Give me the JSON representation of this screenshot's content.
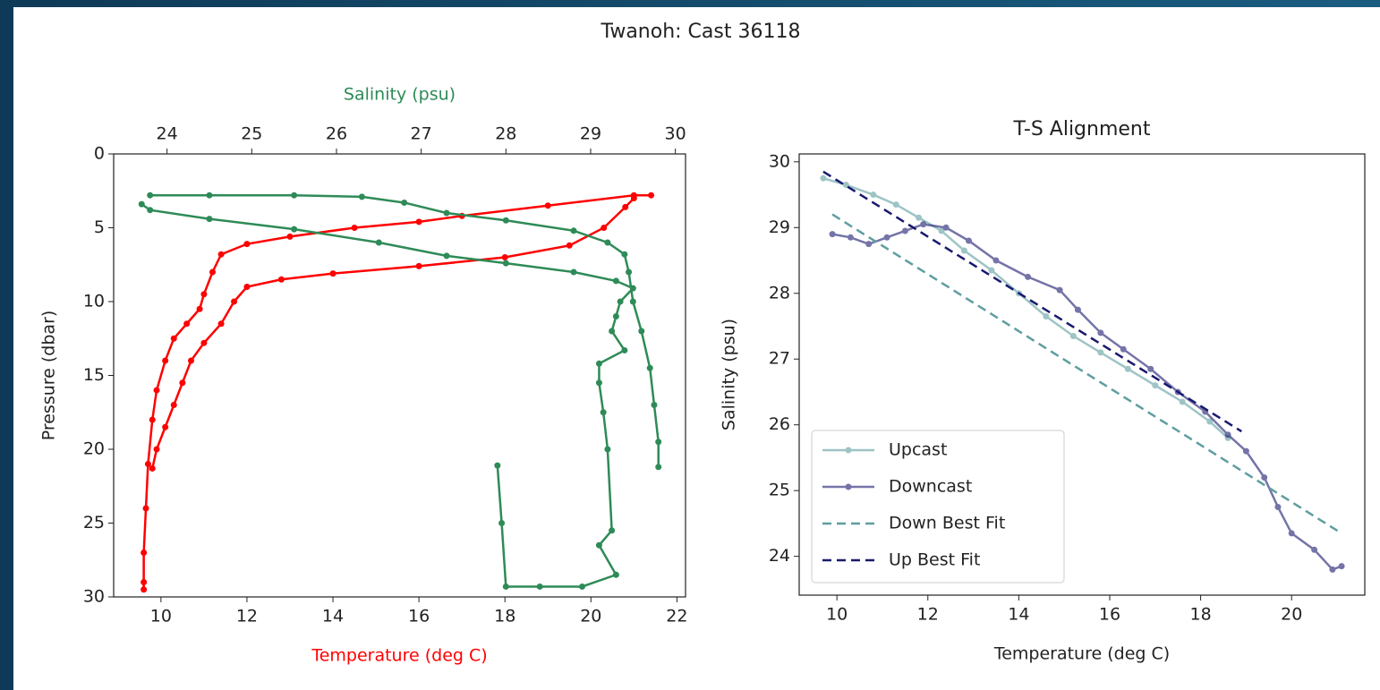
{
  "figure_title": "Twanoh: Cast 36118",
  "chart_data": [
    {
      "type": "line",
      "xlabel": "Temperature (deg C)",
      "xlabel_color": "red",
      "x2label": "Salinity (psu)",
      "x2label_color": "#2e8b57",
      "ylabel": "Pressure (dbar)",
      "xlim": [
        8.9,
        22.2
      ],
      "xticks": [
        10,
        12,
        14,
        16,
        18,
        20,
        22
      ],
      "x2lim": [
        23.37,
        30.12
      ],
      "x2ticks": [
        24,
        25,
        26,
        27,
        28,
        29,
        30
      ],
      "ylim": [
        30,
        0
      ],
      "yticks": [
        0,
        5,
        10,
        15,
        20,
        25,
        30
      ],
      "series": [
        {
          "color": "red",
          "axis": "x",
          "marker": true,
          "x": [
            21.4,
            21.0,
            19.0,
            17.0,
            16.0,
            14.5,
            13.0,
            12.0,
            11.4,
            11.2,
            11.0,
            10.9,
            10.6,
            10.3,
            10.1,
            9.9,
            9.8,
            9.7,
            9.65,
            9.6,
            9.6,
            9.6
          ],
          "values": [
            2.8,
            2.8,
            3.5,
            4.2,
            4.6,
            5.0,
            5.6,
            6.1,
            6.8,
            8.0,
            9.5,
            10.5,
            11.5,
            12.5,
            14.0,
            16.0,
            18.0,
            21.0,
            24.0,
            27.0,
            29.0,
            29.5
          ]
        },
        {
          "color": "red",
          "axis": "x",
          "marker": true,
          "x": [
            21.0,
            20.8,
            20.3,
            19.5,
            18.0,
            16.0,
            14.0,
            12.8,
            12.0,
            11.7,
            11.4,
            11.0,
            10.7,
            10.5,
            10.3,
            10.1,
            9.9,
            9.8
          ],
          "values": [
            3.0,
            3.6,
            5.0,
            6.2,
            7.0,
            7.6,
            8.1,
            8.5,
            9.0,
            10.0,
            11.5,
            12.8,
            14.0,
            15.5,
            17.0,
            18.5,
            20.0,
            21.3
          ]
        },
        {
          "color": "#2e8b57",
          "axis": "x2",
          "marker": true,
          "x": [
            23.8,
            24.5,
            25.5,
            26.3,
            26.8,
            27.3,
            28.0,
            28.8,
            29.2,
            29.4,
            29.45,
            29.5,
            29.6,
            29.7,
            29.75,
            29.8,
            29.8
          ],
          "values": [
            2.8,
            2.8,
            2.8,
            2.9,
            3.3,
            4.0,
            4.5,
            5.2,
            6.0,
            6.8,
            8.0,
            10.0,
            12.0,
            14.5,
            17.0,
            19.5,
            21.2
          ]
        },
        {
          "color": "#2e8b57",
          "axis": "x2",
          "marker": true,
          "x": [
            23.7,
            23.8,
            24.5,
            25.5,
            26.5,
            27.3,
            28.0,
            28.8,
            29.3,
            29.5,
            29.35,
            29.3,
            29.25,
            29.4,
            29.1,
            29.1,
            29.15,
            29.2,
            29.25,
            29.1,
            29.3,
            28.9,
            28.4,
            28.0,
            27.95,
            27.9
          ],
          "values": [
            3.4,
            3.8,
            4.4,
            5.1,
            6.0,
            6.9,
            7.4,
            8.0,
            8.6,
            9.1,
            10.0,
            11.0,
            12.0,
            13.3,
            14.2,
            15.5,
            17.5,
            20.0,
            25.5,
            26.5,
            28.5,
            29.3,
            29.3,
            29.3,
            25.0,
            21.1
          ]
        }
      ]
    },
    {
      "type": "line",
      "title": "T-S Alignment",
      "xlabel": "Temperature (deg C)",
      "ylabel": "Salinity (psu)",
      "xlim": [
        9.17,
        21.61
      ],
      "xticks": [
        10,
        12,
        14,
        16,
        18,
        20
      ],
      "ylim": [
        23.41,
        30.12
      ],
      "yticks": [
        24,
        25,
        26,
        27,
        28,
        29,
        30
      ],
      "legend": "lower left",
      "series": [
        {
          "name": "Upcast",
          "color": "#5f9ea0",
          "alpha": 0.6,
          "marker": true,
          "x": [
            9.7,
            10.2,
            10.8,
            11.3,
            11.8,
            12.3,
            12.8,
            13.4,
            14.0,
            14.6,
            15.2,
            15.8,
            16.4,
            17.0,
            17.6,
            18.2,
            18.6
          ],
          "values": [
            29.75,
            29.65,
            29.5,
            29.35,
            29.15,
            28.95,
            28.65,
            28.35,
            28.0,
            27.65,
            27.35,
            27.1,
            26.85,
            26.6,
            26.35,
            26.05,
            25.8
          ]
        },
        {
          "name": "Downcast",
          "color": "#191970",
          "alpha": 0.6,
          "marker": true,
          "x": [
            9.9,
            10.3,
            10.7,
            11.1,
            11.5,
            11.9,
            12.4,
            12.9,
            13.5,
            14.2,
            14.9,
            15.3,
            15.8,
            16.3,
            16.9,
            17.5,
            18.1,
            18.6,
            19.0,
            19.4,
            19.7,
            20.0,
            20.5,
            20.9,
            21.1
          ],
          "values": [
            28.9,
            28.85,
            28.75,
            28.85,
            28.95,
            29.05,
            29.0,
            28.8,
            28.5,
            28.25,
            28.05,
            27.75,
            27.4,
            27.15,
            26.85,
            26.5,
            26.2,
            25.85,
            25.6,
            25.2,
            24.75,
            24.35,
            24.1,
            23.8,
            23.85
          ]
        },
        {
          "name": "Down Best Fit",
          "color": "#5f9ea0",
          "dashed": true,
          "x": [
            9.9,
            21.1
          ],
          "values": [
            29.2,
            24.35
          ]
        },
        {
          "name": "Up Best Fit",
          "color": "#191970",
          "dashed": true,
          "x": [
            9.7,
            18.9
          ],
          "values": [
            29.85,
            25.9
          ]
        }
      ]
    }
  ]
}
